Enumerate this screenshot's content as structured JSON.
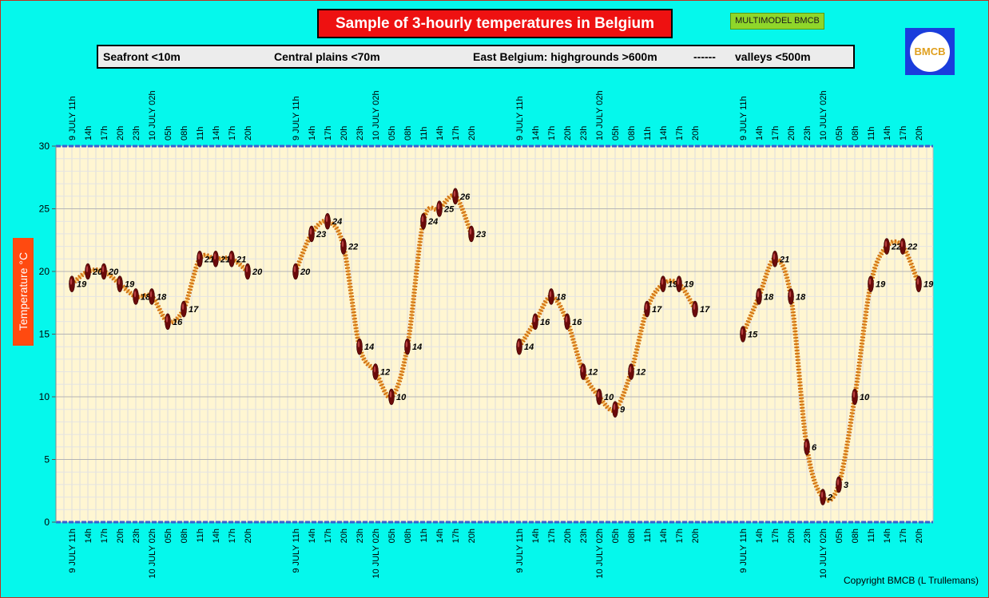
{
  "title": "Sample of 3-hourly temperatures in Belgium",
  "model_badge": "MULTIMODEL BMCB",
  "legend": {
    "seafront": "Seafront <10m",
    "central": "Central plains <70m",
    "east": "East Belgium: highgrounds >600m",
    "separator": "------",
    "valleys": "valleys <500m"
  },
  "logo_text": "BMCB",
  "copyright": "Copyright BMCB (L Trullemans)",
  "colors": {
    "background": "#05f8ec",
    "plot_area": "#fff6d2",
    "grid": "#cfcfcf",
    "curve": "#f0a030",
    "marker": "#6a0a0a",
    "axis": "#3a5fd0"
  },
  "chart_data": {
    "type": "line",
    "ylabel": "Temperature  °C",
    "ylim": [
      0,
      30
    ],
    "yticks": [
      0,
      5,
      10,
      15,
      20,
      25,
      30
    ],
    "categories": [
      "9 JULY 11h",
      "14h",
      "17h",
      "20h",
      "23h",
      "10 JULY 02h",
      "05h",
      "08h",
      "11h",
      "14h",
      "17h",
      "20h"
    ],
    "grid": true,
    "series": [
      {
        "values": [
          19,
          20,
          20,
          19,
          18,
          18,
          16,
          17,
          21,
          21,
          21,
          20
        ]
      },
      {
        "values": [
          20,
          23,
          24,
          22,
          14,
          12,
          10,
          14,
          24,
          25,
          26,
          23
        ]
      },
      {
        "values": [
          14,
          16,
          18,
          16,
          12,
          10,
          9,
          12,
          17,
          19,
          19,
          17
        ]
      },
      {
        "values": [
          15,
          18,
          21,
          18,
          6,
          2,
          3,
          10,
          19,
          22,
          22,
          19
        ]
      }
    ]
  }
}
